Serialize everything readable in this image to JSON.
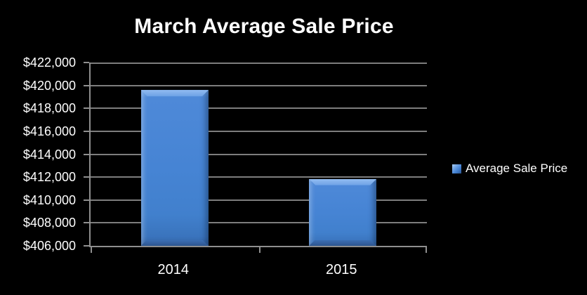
{
  "title": "March Average Sale Price",
  "legend": {
    "label": "Average Sale Price"
  },
  "colors": {
    "background": "#000000",
    "text": "#ffffff",
    "bar_fill": "#4684d4",
    "bar_highlight": "#93bcf1",
    "bar_shadow": "#2d5590",
    "gridline": "#7d7d7d",
    "axis": "#8f8f8f"
  },
  "chart_data": {
    "type": "bar",
    "title": "March Average Sale Price",
    "categories": [
      "2014",
      "2015"
    ],
    "series": [
      {
        "name": "Average Sale Price",
        "values": [
          419600,
          411850
        ]
      }
    ],
    "xlabel": "",
    "ylabel": "",
    "ylim": [
      406000,
      422000
    ],
    "ytick_step": 2000,
    "yticks": [
      422000,
      420000,
      418000,
      416000,
      414000,
      412000,
      410000,
      408000,
      406000
    ],
    "ytick_labels": [
      "$422,000",
      "$420,000",
      "$418,000",
      "$416,000",
      "$414,000",
      "$412,000",
      "$410,000",
      "$408,000",
      "$406,000"
    ],
    "grid": true,
    "legend_position": "right"
  }
}
